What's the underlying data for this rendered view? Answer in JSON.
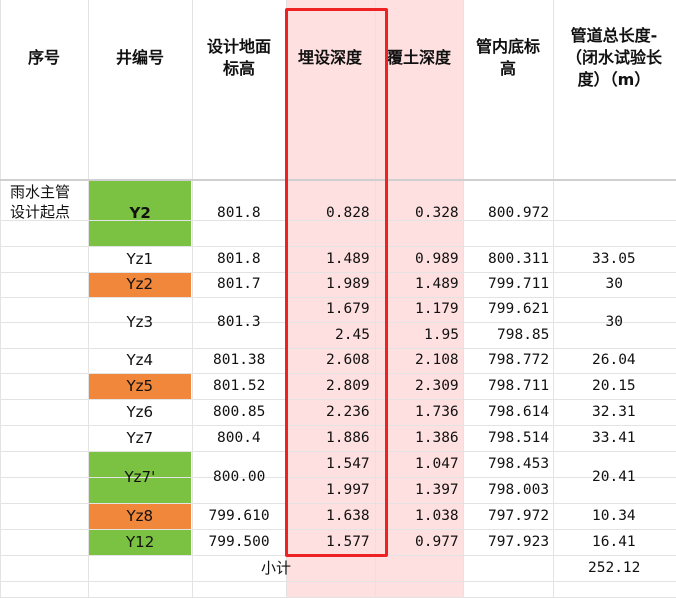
{
  "headers": {
    "seq": "序号",
    "well_no": "井编号",
    "ground_elev": [
      "设计地面",
      "标高"
    ],
    "burial_depth": "埋设深度",
    "cover_depth": "覆土深度",
    "pipe_bottom": [
      "管内底标",
      "高"
    ],
    "pipe_length": [
      "管道总长度-",
      "（闭水试验长",
      "度）（m）"
    ]
  },
  "start_label": [
    "雨水主管",
    "设计起点"
  ],
  "rows": [
    {
      "well": "Y2",
      "fill": "#7cc242",
      "bold": true,
      "ground": "801.8",
      "burial": "0.828",
      "cover": "0.328",
      "bottom": "800.972",
      "length": ""
    },
    {
      "well": "Yz1",
      "fill": "",
      "ground": "801.8",
      "burial": "1.489",
      "cover": "0.989",
      "bottom": "800.311",
      "length": "33.05"
    },
    {
      "well": "Yz2",
      "fill": "#f0873a",
      "ground": "801.7",
      "burial": "1.989",
      "cover": "1.489",
      "bottom": "799.711",
      "length": "30"
    },
    {
      "well": "Yz3",
      "fill": "",
      "ground": "801.3",
      "burial": "1.679",
      "cover": "1.179",
      "bottom": "799.621",
      "length": "30",
      "burial2": "2.45",
      "cover2": "1.95",
      "bottom2": "798.85"
    },
    {
      "well": "Yz4",
      "fill": "",
      "ground": "801.38",
      "burial": "2.608",
      "cover": "2.108",
      "bottom": "798.772",
      "length": "26.04"
    },
    {
      "well": "Yz5",
      "fill": "#f0873a",
      "ground": "801.52",
      "burial": "2.809",
      "cover": "2.309",
      "bottom": "798.711",
      "length": "20.15"
    },
    {
      "well": "Yz6",
      "fill": "",
      "ground": "800.85",
      "burial": "2.236",
      "cover": "1.736",
      "bottom": "798.614",
      "length": "32.31"
    },
    {
      "well": "Yz7",
      "fill": "",
      "ground": "800.4",
      "burial": "1.886",
      "cover": "1.386",
      "bottom": "798.514",
      "length": "33.41"
    },
    {
      "well": "Yz7'",
      "fill": "#7cc242",
      "ground": "800.00",
      "burial": "1.547",
      "cover": "1.047",
      "bottom": "798.453",
      "length": "20.41",
      "burial2": "1.997",
      "cover2": "1.397",
      "bottom2": "798.003"
    },
    {
      "well": "Yz8",
      "fill": "#f0873a",
      "ground": "799.610",
      "burial": "1.638",
      "cover": "1.038",
      "bottom": "797.972",
      "length": "10.34"
    },
    {
      "well": "Y12",
      "fill": "#7cc242",
      "ground": "799.500",
      "burial": "1.577",
      "cover": "0.977",
      "bottom": "797.923",
      "length": "16.41"
    }
  ],
  "subtotal": {
    "label": "小计",
    "value": "252.12"
  }
}
